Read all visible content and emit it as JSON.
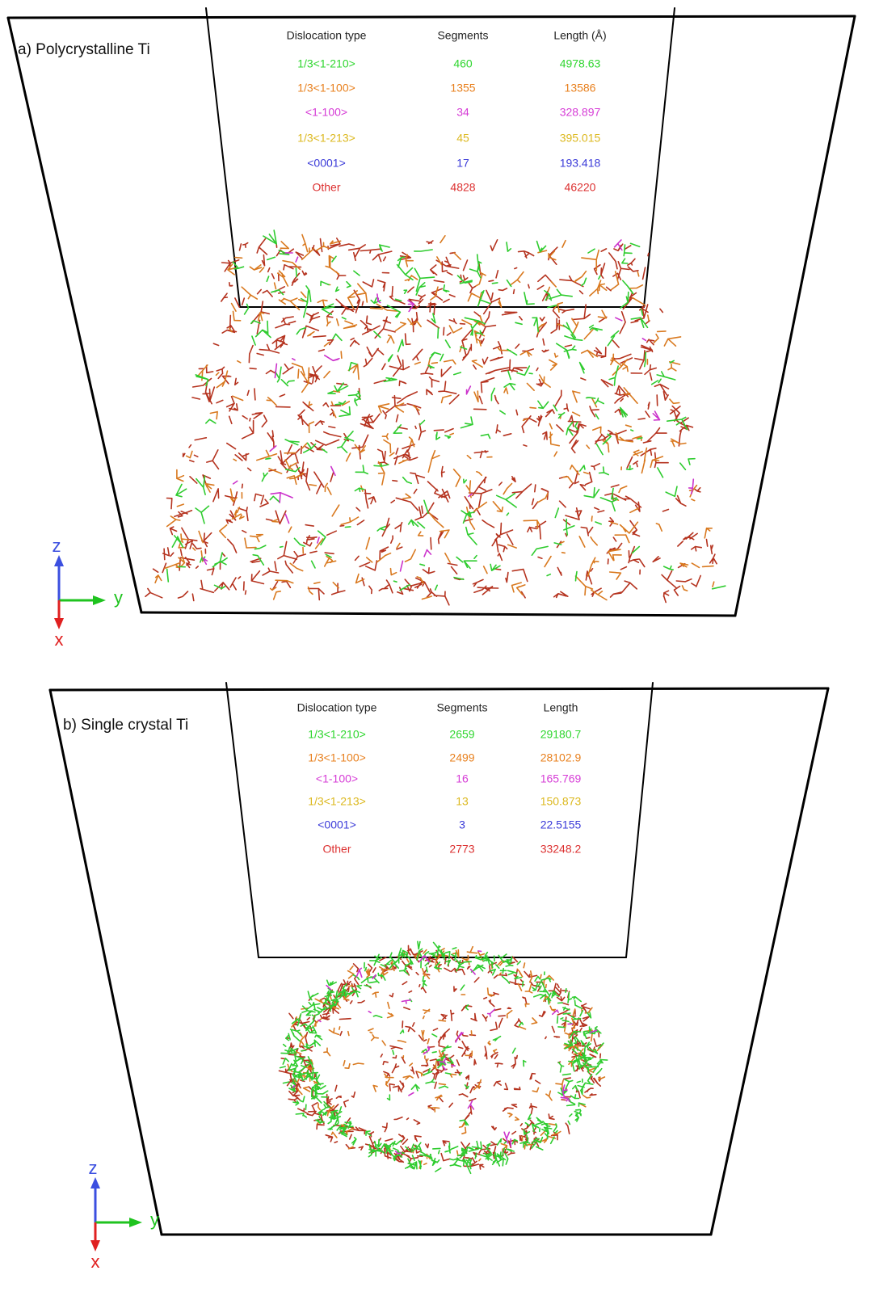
{
  "panels": [
    {
      "label": "a) Polycrystalline Ti",
      "table": {
        "header": [
          "Dislocation type",
          "Segments",
          "Length (Å)"
        ],
        "rows": [
          [
            "1/3<1-210>",
            "460",
            "4978.63"
          ],
          [
            "1/3<1-100>",
            "1355",
            "13586"
          ],
          [
            "<1-100>",
            "34",
            "328.897"
          ],
          [
            "1/3<1-213>",
            "45",
            "395.015"
          ],
          [
            "<0001>",
            "17",
            "193.418"
          ],
          [
            "Other",
            "4828",
            "46220"
          ]
        ]
      },
      "axes": {
        "z": "z",
        "y": "y",
        "x": "x"
      }
    },
    {
      "label": "b) Single crystal Ti",
      "table": {
        "header": [
          "Dislocation type",
          "Segments",
          "Length"
        ],
        "rows": [
          [
            "1/3<1-210>",
            "2659",
            "29180.7"
          ],
          [
            "1/3<1-100>",
            "2499",
            "28102.9"
          ],
          [
            "<1-100>",
            "16",
            "165.769"
          ],
          [
            "1/3<1-213>",
            "13",
            "150.873"
          ],
          [
            "<0001>",
            "3",
            "22.5155"
          ],
          [
            "Other",
            "2773",
            "33248.2"
          ]
        ]
      },
      "axes": {
        "z": "z",
        "y": "y",
        "x": "x"
      }
    }
  ]
}
